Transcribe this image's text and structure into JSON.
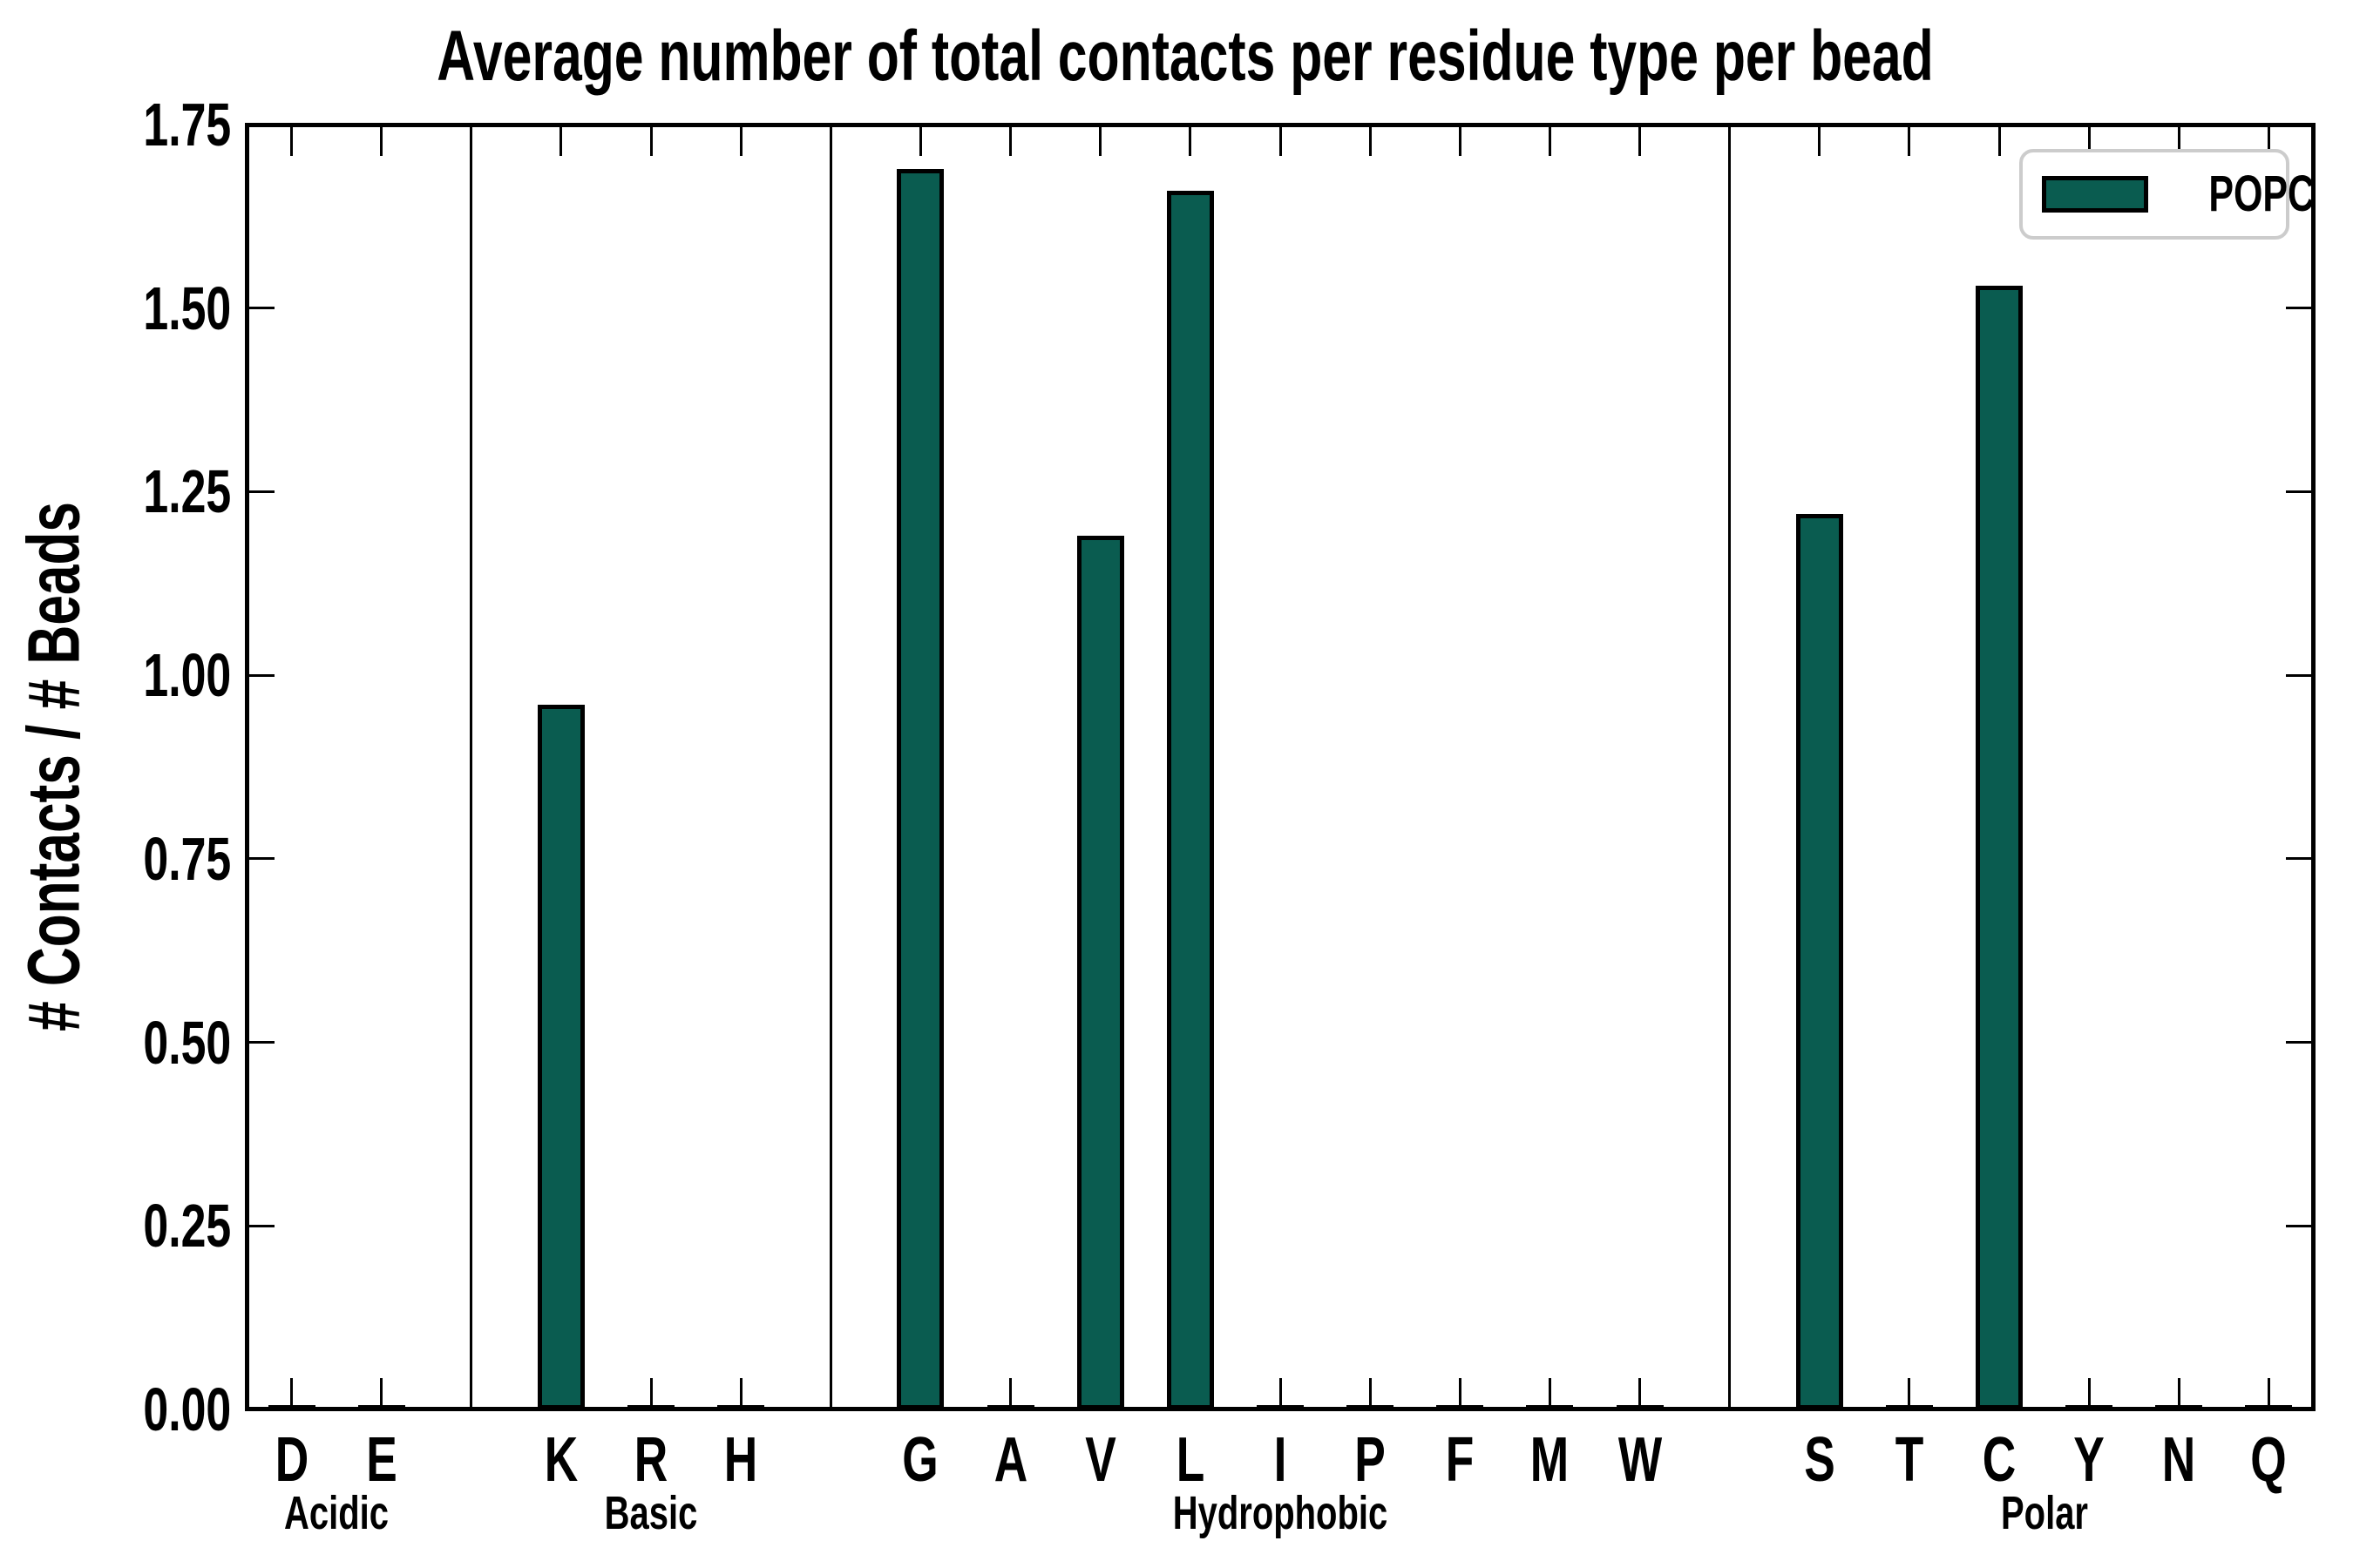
{
  "title": "Average number of total contacts per residue type per bead",
  "y_axis_label": "# Contacts / # Beads",
  "legend": {
    "label": "POPC",
    "swatch_color": "#0A5C50",
    "position": "upper right"
  },
  "colors": {
    "bar_fill": "#0A5C50",
    "bar_edge": "#000000",
    "axis": "#000000",
    "legend_border": "#cccccc",
    "background": "#ffffff"
  },
  "chart_data": {
    "type": "bar",
    "title": "Average number of total contacts per residue type per bead",
    "xlabel": "",
    "ylabel": "# Contacts / # Beads",
    "ylim": [
      0,
      1.75
    ],
    "ytick_step": 0.25,
    "ytick_labels": [
      "0.00",
      "0.25",
      "0.50",
      "0.75",
      "1.00",
      "1.25",
      "1.50",
      "1.75"
    ],
    "grid": false,
    "legend_entries": [
      "POPC"
    ],
    "legend_position": "upper right",
    "series_name": "POPC",
    "groups": [
      {
        "label": "Acidic",
        "residues": [
          {
            "label": "D",
            "value": 0.0
          },
          {
            "label": "E",
            "value": 0.0
          }
        ]
      },
      {
        "label": "Basic",
        "residues": [
          {
            "label": "K",
            "value": 0.96
          },
          {
            "label": "R",
            "value": 0.0
          },
          {
            "label": "H",
            "value": 0.0
          }
        ]
      },
      {
        "label": "Hydrophobic",
        "residues": [
          {
            "label": "G",
            "value": 1.69
          },
          {
            "label": "A",
            "value": 0.0
          },
          {
            "label": "V",
            "value": 1.19
          },
          {
            "label": "L",
            "value": 1.66
          },
          {
            "label": "I",
            "value": 0.0
          },
          {
            "label": "P",
            "value": 0.0
          },
          {
            "label": "F",
            "value": 0.0
          },
          {
            "label": "M",
            "value": 0.0
          },
          {
            "label": "W",
            "value": 0.0
          }
        ]
      },
      {
        "label": "Polar",
        "residues": [
          {
            "label": "S",
            "value": 1.22
          },
          {
            "label": "T",
            "value": 0.0
          },
          {
            "label": "C",
            "value": 1.53
          },
          {
            "label": "Y",
            "value": 0.0
          },
          {
            "label": "N",
            "value": 0.0
          },
          {
            "label": "Q",
            "value": 0.0
          }
        ]
      }
    ]
  }
}
